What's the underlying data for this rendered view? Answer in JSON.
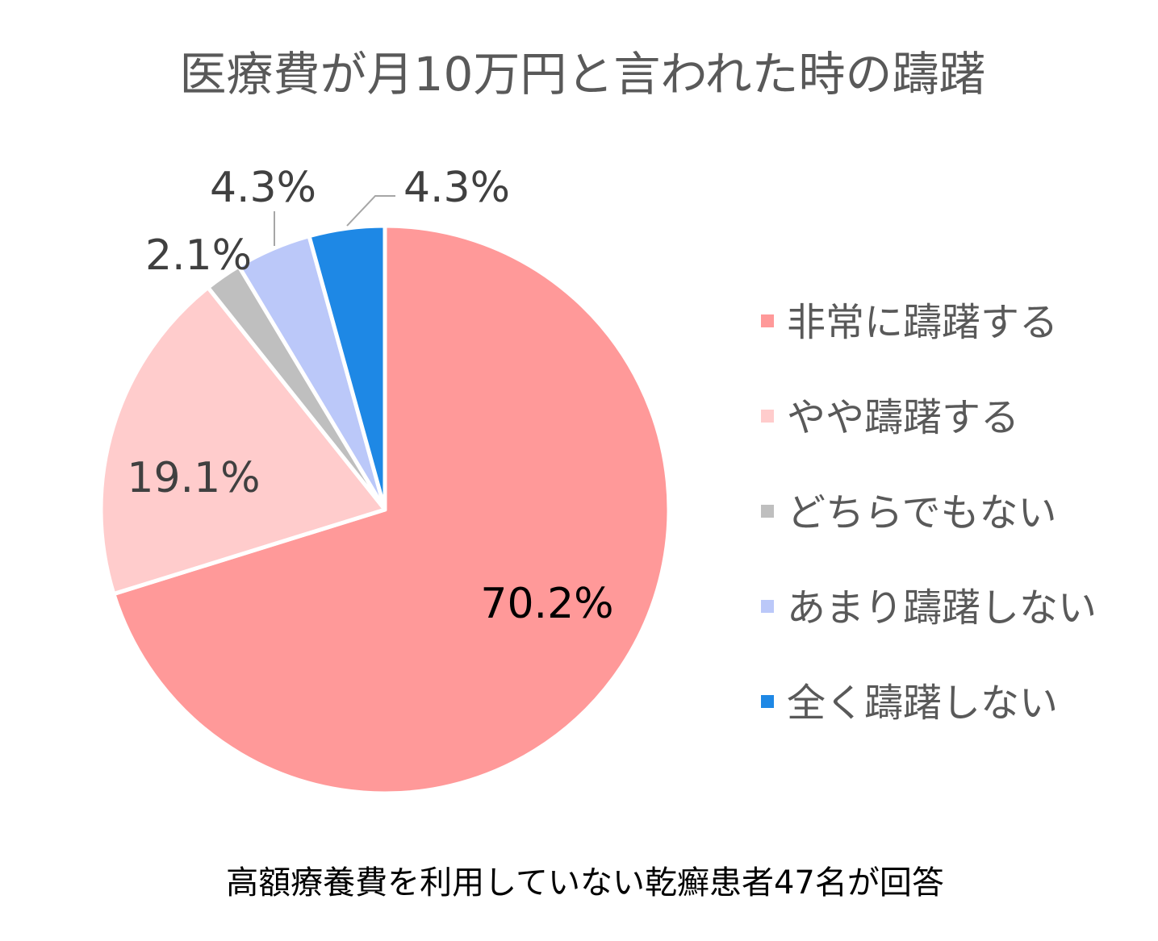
{
  "chart_data": {
    "type": "pie",
    "title": "医療費が月10万円と言われた時の躊躇",
    "categories": [
      "非常に躊躇する",
      "やや躊躇する",
      "どちらでもない",
      "あまり躊躇しない",
      "全く躊躇しない"
    ],
    "values": [
      70.2,
      19.1,
      2.1,
      4.3,
      4.3
    ],
    "value_labels": [
      "70.2%",
      "19.1%",
      "2.1%",
      "4.3%",
      "4.3%"
    ],
    "colors": [
      "#FF9999",
      "#FFCCCC",
      "#BFBFBF",
      "#BBC8F9",
      "#1E88E5"
    ],
    "legend_position": "right",
    "footnote": "高額療養費を利用していない乾癬患者47名が回答"
  }
}
